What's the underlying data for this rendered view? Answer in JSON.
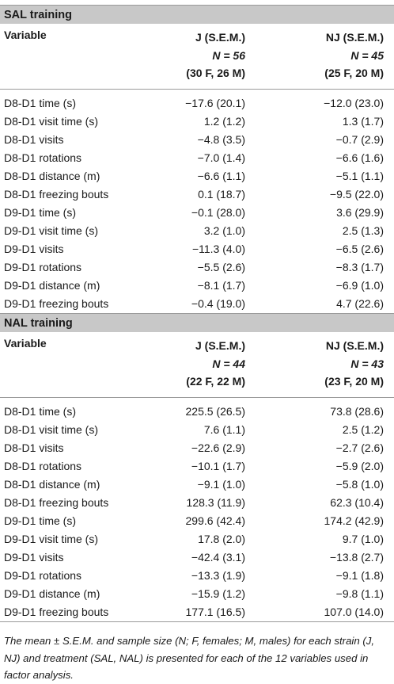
{
  "sections": [
    {
      "title": "SAL training",
      "header": {
        "variable": "Variable",
        "col1": {
          "name": "J (S.E.M.)",
          "n": "N = 56",
          "sex": "(30 F, 26 M)"
        },
        "col2": {
          "name": "NJ (S.E.M.)",
          "n": "N = 45",
          "sex": "(25 F, 20 M)"
        }
      },
      "rows": [
        {
          "label": "D8-D1 time (s)",
          "j": "−17.6 (20.1)",
          "nj": "−12.0 (23.0)"
        },
        {
          "label": "D8-D1 visit time (s)",
          "j": "1.2 (1.2)",
          "nj": "1.3 (1.7)"
        },
        {
          "label": "D8-D1 visits",
          "j": "−4.8 (3.5)",
          "nj": "−0.7 (2.9)"
        },
        {
          "label": "D8-D1 rotations",
          "j": "−7.0 (1.4)",
          "nj": "−6.6 (1.6)"
        },
        {
          "label": "D8-D1 distance (m)",
          "j": "−6.6 (1.1)",
          "nj": "−5.1 (1.1)"
        },
        {
          "label": "D8-D1 freezing bouts",
          "j": "0.1 (18.7)",
          "nj": "−9.5 (22.0)"
        },
        {
          "label": "D9-D1 time (s)",
          "j": "−0.1 (28.0)",
          "nj": "3.6 (29.9)"
        },
        {
          "label": "D9-D1 visit time (s)",
          "j": "3.2 (1.0)",
          "nj": "2.5 (1.3)"
        },
        {
          "label": "D9-D1 visits",
          "j": "−11.3 (4.0)",
          "nj": "−6.5 (2.6)"
        },
        {
          "label": "D9-D1 rotations",
          "j": "−5.5 (2.6)",
          "nj": "−8.3 (1.7)"
        },
        {
          "label": "D9-D1 distance (m)",
          "j": "−8.1 (1.7)",
          "nj": "−6.9 (1.0)"
        },
        {
          "label": "D9-D1 freezing bouts",
          "j": "−0.4 (19.0)",
          "nj": "4.7 (22.6)"
        }
      ]
    },
    {
      "title": "NAL training",
      "header": {
        "variable": "Variable",
        "col1": {
          "name": "J (S.E.M.)",
          "n": "N = 44",
          "sex": "(22 F, 22 M)"
        },
        "col2": {
          "name": "NJ (S.E.M.)",
          "n": "N = 43",
          "sex": "(23 F, 20 M)"
        }
      },
      "rows": [
        {
          "label": "D8-D1 time (s)",
          "j": "225.5 (26.5)",
          "nj": "73.8 (28.6)"
        },
        {
          "label": "D8-D1 visit time (s)",
          "j": "7.6 (1.1)",
          "nj": "2.5 (1.2)"
        },
        {
          "label": "D8-D1 visits",
          "j": "−22.6 (2.9)",
          "nj": "−2.7 (2.6)"
        },
        {
          "label": "D8-D1 rotations",
          "j": "−10.1 (1.7)",
          "nj": "−5.9 (2.0)"
        },
        {
          "label": "D8-D1 distance (m)",
          "j": "−9.1 (1.0)",
          "nj": "−5.8 (1.0)"
        },
        {
          "label": "D8-D1 freezing bouts",
          "j": "128.3 (11.9)",
          "nj": "62.3 (10.4)"
        },
        {
          "label": "D9-D1 time (s)",
          "j": "299.6 (42.4)",
          "nj": "174.2 (42.9)"
        },
        {
          "label": "D9-D1 visit time (s)",
          "j": "17.8 (2.0)",
          "nj": "9.7 (1.0)"
        },
        {
          "label": "D9-D1 visits",
          "j": "−42.4 (3.1)",
          "nj": "−13.8 (2.7)"
        },
        {
          "label": "D9-D1 rotations",
          "j": "−13.3 (1.9)",
          "nj": "−9.1 (1.8)"
        },
        {
          "label": "D9-D1 distance (m)",
          "j": "−15.9 (1.2)",
          "nj": "−9.8 (1.1)"
        },
        {
          "label": "D9-D1 freezing bouts",
          "j": "177.1 (16.5)",
          "nj": "107.0 (14.0)"
        }
      ]
    }
  ],
  "caption": "The mean ± S.E.M. and sample size (N; F, females; M, males) for each strain (J, NJ) and treatment (SAL, NAL) is presented for each of the 12 variables used in factor analysis."
}
